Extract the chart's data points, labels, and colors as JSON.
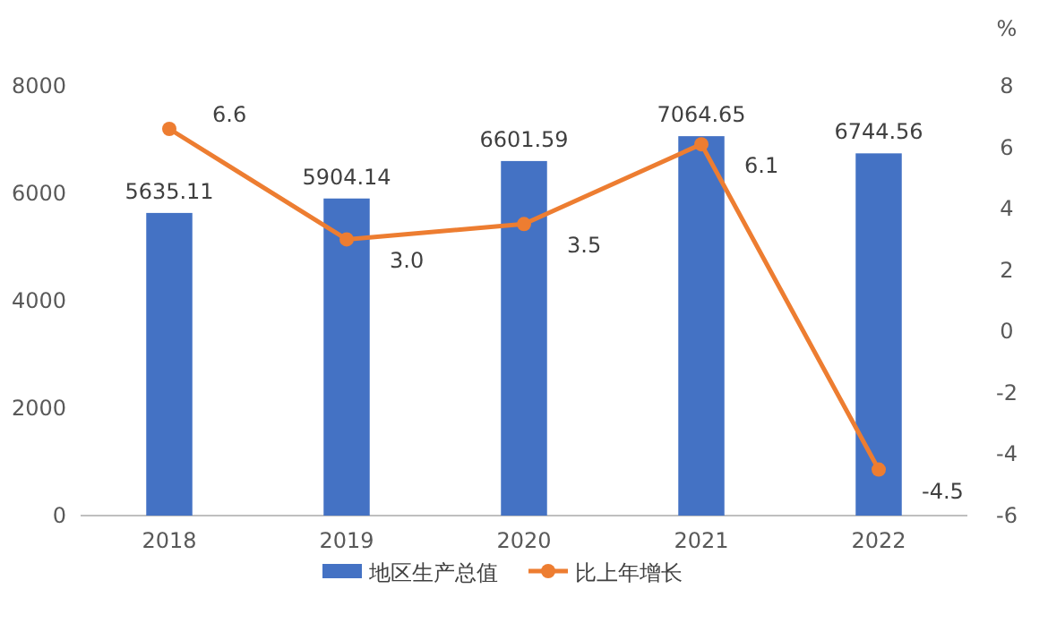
{
  "chart_data": {
    "type": "bar",
    "categories": [
      "2018",
      "2019",
      "2020",
      "2021",
      "2022"
    ],
    "series": [
      {
        "name": "地区生产总值",
        "color": "#4472c4",
        "values": [
          5635.11,
          5904.14,
          6601.59,
          7064.65,
          6744.56
        ]
      },
      {
        "name": "比上年增长",
        "type": "line",
        "axis": "y2",
        "color": "#ed7d31",
        "values": [
          6.6,
          3.0,
          3.5,
          6.1,
          -4.5
        ],
        "value_labels": [
          "6.6",
          "3.0",
          "3.5",
          "6.1",
          "-4.5"
        ]
      }
    ],
    "ylim": [
      0,
      8000
    ],
    "yticks": [
      0,
      2000,
      4000,
      6000,
      8000
    ],
    "y2lim": [
      -6,
      8
    ],
    "y2ticks": [
      -6,
      -4,
      -2,
      0,
      2,
      4,
      6,
      8
    ],
    "y2label": "%",
    "legend": "bottom",
    "data_labels": true,
    "marker": "circle",
    "grid": false
  }
}
